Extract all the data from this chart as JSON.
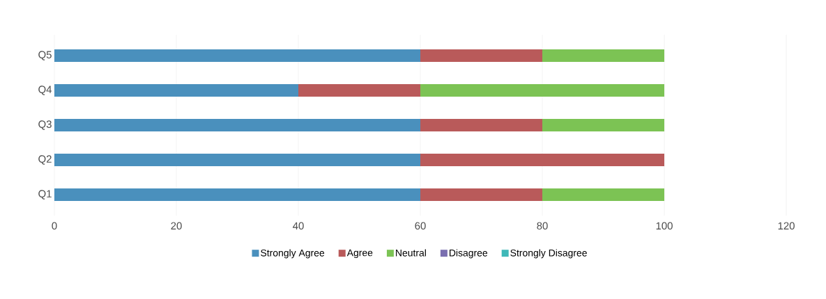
{
  "chart_data": {
    "type": "bar",
    "orientation": "horizontal",
    "stacked": true,
    "categories": [
      "Q5",
      "Q4",
      "Q3",
      "Q2",
      "Q1"
    ],
    "series": [
      {
        "name": "Strongly Agree",
        "color": "#4a90bd",
        "values": [
          60,
          40,
          60,
          60,
          60
        ]
      },
      {
        "name": "Agree",
        "color": "#b95a5a",
        "values": [
          20,
          20,
          20,
          40,
          20
        ]
      },
      {
        "name": "Neutral",
        "color": "#7cc354",
        "values": [
          20,
          40,
          20,
          0,
          20
        ]
      },
      {
        "name": "Disagree",
        "color": "#7a6fb0",
        "values": [
          0,
          0,
          0,
          0,
          0
        ]
      },
      {
        "name": "Strongly Disagree",
        "color": "#3fb8b8",
        "values": [
          0,
          0,
          0,
          0,
          0
        ]
      }
    ],
    "xlim": [
      0,
      120
    ],
    "xticks": [
      0,
      20,
      40,
      60,
      80,
      100,
      120
    ],
    "grid": "x",
    "legend": "bottom"
  }
}
